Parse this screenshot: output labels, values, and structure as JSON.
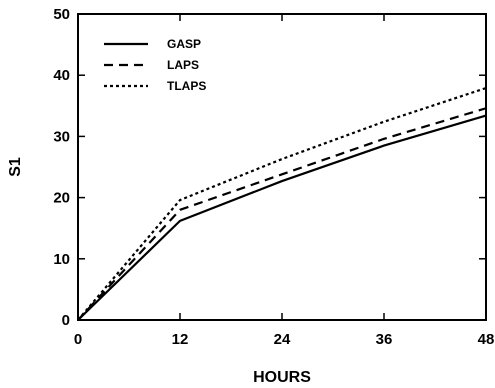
{
  "chart_data": {
    "type": "line",
    "xlabel": "HOURS",
    "ylabel": "S1",
    "xlim": [
      0,
      48
    ],
    "ylim": [
      0,
      50
    ],
    "x_ticks": [
      "0",
      "12",
      "24",
      "36",
      "48"
    ],
    "y_ticks": [
      "0",
      "10",
      "20",
      "30",
      "40",
      "50"
    ],
    "grid": false,
    "legend_position": "top-left",
    "x": [
      0,
      12,
      24,
      36,
      48
    ],
    "series": [
      {
        "name": "GASP",
        "style": "solid",
        "values": [
          0,
          16.2,
          22.7,
          28.5,
          33.4
        ]
      },
      {
        "name": "LAPS",
        "style": "dashed",
        "values": [
          0,
          18.0,
          23.8,
          29.6,
          34.6
        ]
      },
      {
        "name": "TLAPS",
        "style": "dotted",
        "values": [
          0,
          19.6,
          26.3,
          32.4,
          37.9
        ]
      }
    ]
  }
}
